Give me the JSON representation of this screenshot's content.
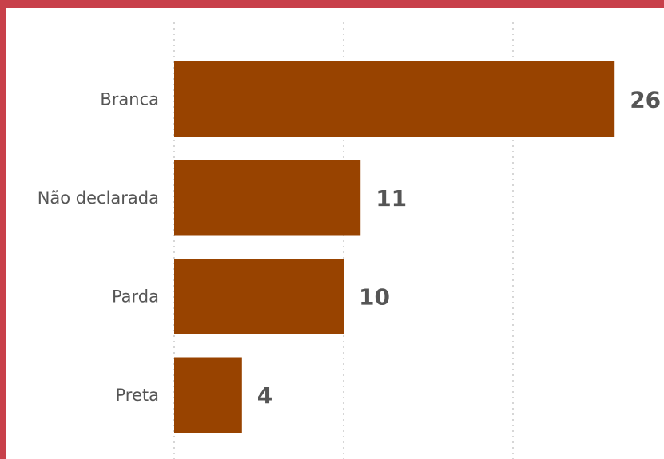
{
  "colors": {
    "bar": "#984300",
    "frame": "#c8404a",
    "text": "#555555",
    "grid": "#c8c8c8"
  },
  "chart_data": {
    "type": "bar",
    "orientation": "horizontal",
    "categories": [
      "Branca",
      "Não declarada",
      "Parda",
      "Preta"
    ],
    "values": [
      26,
      11,
      10,
      4
    ],
    "xlim": [
      0,
      30
    ],
    "grid": true,
    "data_labels": [
      "26",
      "11",
      "10",
      "4"
    ]
  }
}
